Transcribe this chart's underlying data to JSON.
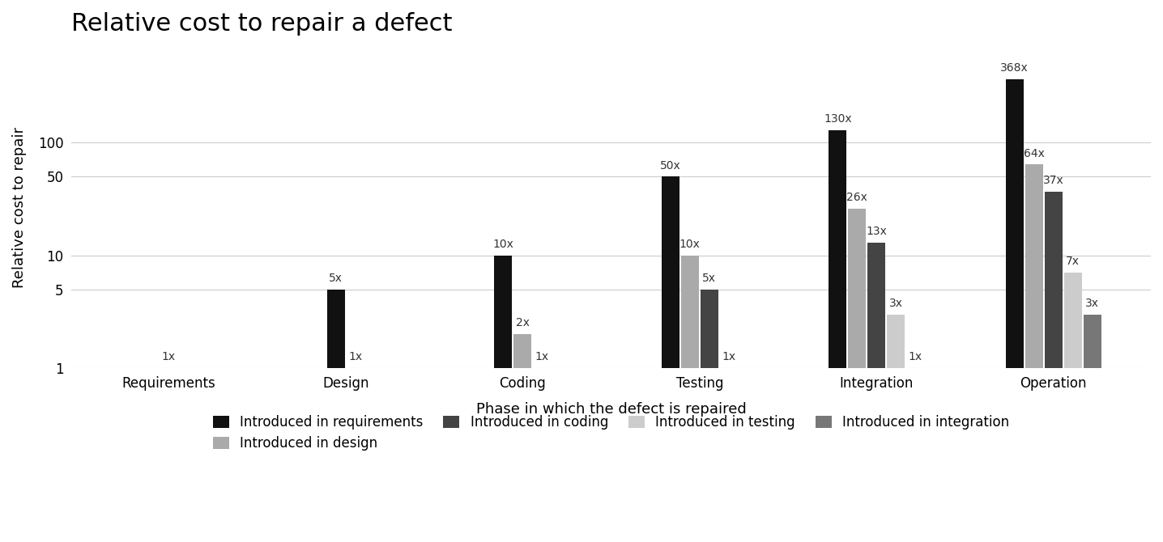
{
  "title": "Relative cost to repair a defect",
  "xlabel": "Phase in which the defect is repaired",
  "ylabel": "Relative cost to repair",
  "phases": [
    "Requirements",
    "Design",
    "Coding",
    "Testing",
    "Integration",
    "Operation"
  ],
  "series": [
    {
      "label": "Introduced in requirements",
      "color": "#111111",
      "values": [
        1,
        5,
        10,
        50,
        130,
        368
      ],
      "phases_present": [
        0,
        1,
        2,
        3,
        4,
        5
      ]
    },
    {
      "label": "Introduced in design",
      "color": "#aaaaaa",
      "values": [
        1,
        2,
        10,
        26,
        64
      ],
      "phases_present": [
        1,
        2,
        3,
        4,
        5
      ]
    },
    {
      "label": "Introduced in coding",
      "color": "#444444",
      "values": [
        1,
        5,
        13,
        37
      ],
      "phases_present": [
        2,
        3,
        4,
        5
      ]
    },
    {
      "label": "Introduced in testing",
      "color": "#cccccc",
      "values": [
        1,
        3,
        7
      ],
      "phases_present": [
        3,
        4,
        5
      ]
    },
    {
      "label": "Introduced in integration",
      "color": "#777777",
      "values": [
        1,
        3
      ],
      "phases_present": [
        4,
        5
      ]
    }
  ],
  "ylim": [
    1,
    700
  ],
  "yticks": [
    1,
    5,
    10,
    50,
    100
  ],
  "ytick_labels": [
    "1",
    "5",
    "10",
    "50",
    "100"
  ],
  "background_color": "#ffffff",
  "title_fontsize": 22,
  "axis_label_fontsize": 13,
  "tick_fontsize": 12,
  "annotation_fontsize": 10,
  "legend_fontsize": 12,
  "bar_width": 0.1,
  "bar_gap": 0.01
}
